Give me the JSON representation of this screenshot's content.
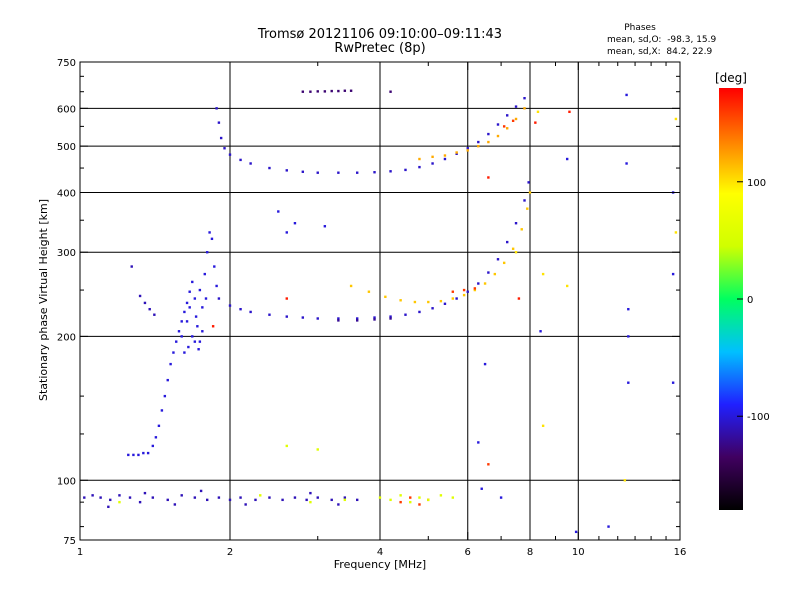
{
  "title": {
    "line1": "Tromsø 20121106 09:10:00–09:11:43",
    "line2": "RwPretec (8p)"
  },
  "stats": {
    "heading": "Phases",
    "o_mode": "mean, sd,O:  -98.3, 15.9",
    "x_mode": "mean, sd,X:  84.2, 22.9"
  },
  "chart_data": {
    "type": "scatter",
    "title": "Tromsø 20121106 09:10:00–09:11:43",
    "subtitle": "RwPretec (8p)",
    "xlabel": "Frequency [MHz]",
    "ylabel": "Stationary phase Virtual Height [km]",
    "x_scale": "log",
    "y_scale": "log",
    "xlim": [
      1,
      16
    ],
    "ylim": [
      75,
      750
    ],
    "x_ticks": [
      1,
      2,
      4,
      6,
      8,
      10,
      16
    ],
    "x_tick_labels": [
      "1",
      "2",
      "4",
      "6",
      "8",
      "10",
      "16"
    ],
    "x_minor_ticks": [
      3,
      5,
      7,
      9,
      11,
      12,
      13,
      14,
      15
    ],
    "y_ticks": [
      75,
      100,
      200,
      300,
      400,
      500,
      600,
      750
    ],
    "y_tick_labels": [
      "75",
      "100",
      "200",
      "300",
      "400",
      "500",
      "600",
      "750"
    ],
    "y_minor_ticks": [
      80,
      90,
      125,
      150,
      250,
      350,
      450,
      550,
      650,
      700
    ],
    "gridlines_x": [
      2,
      4,
      6,
      8,
      10
    ],
    "gridlines_y": [
      100,
      200,
      300,
      400,
      500,
      600
    ],
    "grid": true,
    "colorbar": {
      "label": "[deg]",
      "range": [
        -180,
        180
      ],
      "ticks": [
        100,
        0,
        -100
      ],
      "stops": [
        "#000000",
        "#400060",
        "#2020ff",
        "#00c0ff",
        "#00ff60",
        "#d0ff00",
        "#ffff00",
        "#ff8000",
        "#ff0000"
      ]
    },
    "series": [
      {
        "phase_deg": -110,
        "points": [
          [
            1.02,
            92
          ],
          [
            1.06,
            93
          ],
          [
            1.1,
            92
          ],
          [
            1.15,
            91
          ],
          [
            1.2,
            93
          ],
          [
            1.26,
            92
          ],
          [
            1.32,
            90
          ],
          [
            1.4,
            92
          ],
          [
            1.5,
            91
          ],
          [
            1.6,
            93
          ],
          [
            1.7,
            92
          ],
          [
            1.8,
            91
          ],
          [
            1.9,
            92
          ],
          [
            2.0,
            91
          ],
          [
            2.1,
            92
          ],
          [
            2.25,
            91
          ],
          [
            2.4,
            92
          ],
          [
            2.55,
            91
          ],
          [
            2.7,
            92
          ],
          [
            2.85,
            91
          ],
          [
            3.0,
            92
          ],
          [
            3.2,
            91
          ],
          [
            3.4,
            92
          ],
          [
            3.6,
            91
          ],
          [
            1.14,
            88
          ],
          [
            1.35,
            94
          ],
          [
            1.55,
            89
          ],
          [
            1.75,
            95
          ],
          [
            2.15,
            89
          ],
          [
            2.9,
            94
          ],
          [
            3.3,
            89
          ]
        ]
      },
      {
        "phase_deg": -100,
        "points": [
          [
            1.25,
            113
          ],
          [
            1.28,
            113
          ],
          [
            1.31,
            113
          ],
          [
            1.34,
            114
          ],
          [
            1.37,
            114
          ],
          [
            1.4,
            118
          ],
          [
            1.42,
            123
          ],
          [
            1.44,
            130
          ],
          [
            1.46,
            140
          ],
          [
            1.48,
            150
          ],
          [
            1.5,
            162
          ],
          [
            1.52,
            175
          ],
          [
            1.54,
            185
          ],
          [
            1.56,
            195
          ],
          [
            1.58,
            205
          ],
          [
            1.6,
            215
          ],
          [
            1.62,
            225
          ],
          [
            1.64,
            235
          ],
          [
            1.66,
            248
          ],
          [
            1.68,
            260
          ],
          [
            1.7,
            240
          ],
          [
            1.72,
            210
          ],
          [
            1.74,
            195
          ],
          [
            1.76,
            230
          ],
          [
            1.78,
            270
          ],
          [
            1.8,
            300
          ],
          [
            1.82,
            330
          ],
          [
            1.84,
            320
          ],
          [
            1.86,
            280
          ],
          [
            1.88,
            255
          ]
        ]
      },
      {
        "phase_deg": -100,
        "points": [
          [
            1.62,
            185
          ],
          [
            1.65,
            190
          ],
          [
            1.68,
            200
          ],
          [
            1.7,
            195
          ],
          [
            1.73,
            188
          ],
          [
            1.76,
            205
          ],
          [
            1.6,
            200
          ],
          [
            1.64,
            215
          ],
          [
            1.71,
            220
          ],
          [
            1.79,
            240
          ],
          [
            1.66,
            230
          ],
          [
            1.74,
            250
          ]
        ]
      },
      {
        "phase_deg": -110,
        "points": [
          [
            1.27,
            280
          ],
          [
            1.32,
            243
          ],
          [
            1.35,
            235
          ],
          [
            1.38,
            228
          ],
          [
            1.41,
            222
          ]
        ]
      },
      {
        "phase_deg": -105,
        "points": [
          [
            1.9,
            240
          ],
          [
            2.0,
            232
          ],
          [
            2.1,
            228
          ],
          [
            2.2,
            225
          ],
          [
            2.4,
            222
          ],
          [
            2.6,
            220
          ],
          [
            2.8,
            219
          ],
          [
            3.0,
            218
          ],
          [
            3.3,
            218
          ],
          [
            3.6,
            218
          ],
          [
            3.9,
            219
          ],
          [
            4.2,
            220
          ],
          [
            4.5,
            222
          ],
          [
            4.8,
            225
          ],
          [
            5.1,
            229
          ],
          [
            5.4,
            234
          ],
          [
            5.7,
            240
          ],
          [
            6.0,
            248
          ],
          [
            6.3,
            258
          ],
          [
            6.6,
            272
          ],
          [
            6.9,
            290
          ],
          [
            7.2,
            315
          ],
          [
            7.5,
            345
          ],
          [
            7.8,
            385
          ],
          [
            7.95,
            420
          ]
        ]
      },
      {
        "phase_deg": -120,
        "points": [
          [
            3.3,
            216
          ],
          [
            3.6,
            216
          ],
          [
            3.9,
            217
          ],
          [
            4.2,
            218
          ]
        ]
      },
      {
        "phase_deg": -105,
        "points": [
          [
            1.88,
            600
          ],
          [
            1.9,
            560
          ],
          [
            1.92,
            520
          ],
          [
            1.95,
            495
          ],
          [
            2.0,
            480
          ],
          [
            2.1,
            468
          ],
          [
            2.2,
            460
          ],
          [
            2.4,
            450
          ],
          [
            2.6,
            445
          ],
          [
            2.8,
            442
          ],
          [
            3.0,
            440
          ],
          [
            3.3,
            440
          ],
          [
            3.6,
            440
          ],
          [
            3.9,
            441
          ],
          [
            4.2,
            443
          ],
          [
            4.5,
            446
          ],
          [
            4.8,
            452
          ],
          [
            5.1,
            460
          ],
          [
            5.4,
            470
          ],
          [
            5.7,
            482
          ],
          [
            6.0,
            495
          ],
          [
            6.3,
            510
          ],
          [
            6.6,
            530
          ],
          [
            6.9,
            555
          ],
          [
            7.2,
            580
          ],
          [
            7.5,
            605
          ],
          [
            7.8,
            630
          ]
        ]
      },
      {
        "phase_deg": -130,
        "points": [
          [
            2.8,
            650
          ],
          [
            2.9,
            650
          ],
          [
            3.0,
            651
          ],
          [
            3.1,
            651
          ],
          [
            3.2,
            652
          ],
          [
            3.3,
            652
          ],
          [
            3.4,
            653
          ],
          [
            3.5,
            653
          ],
          [
            4.2,
            650
          ]
        ]
      },
      {
        "phase_deg": 110,
        "points": [
          [
            3.5,
            255
          ],
          [
            3.8,
            248
          ],
          [
            4.1,
            242
          ],
          [
            4.4,
            238
          ],
          [
            4.7,
            236
          ],
          [
            5.0,
            236
          ],
          [
            5.3,
            237
          ],
          [
            5.6,
            240
          ],
          [
            5.9,
            244
          ],
          [
            6.2,
            250
          ],
          [
            6.5,
            258
          ],
          [
            6.8,
            270
          ],
          [
            7.1,
            285
          ],
          [
            7.4,
            305
          ],
          [
            7.7,
            335
          ],
          [
            7.9,
            370
          ],
          [
            8.0,
            400
          ]
        ]
      },
      {
        "phase_deg": 120,
        "points": [
          [
            4.8,
            470
          ],
          [
            5.1,
            475
          ],
          [
            5.4,
            478
          ],
          [
            5.7,
            485
          ],
          [
            6.0,
            490
          ],
          [
            6.3,
            500
          ],
          [
            6.6,
            510
          ],
          [
            6.9,
            525
          ],
          [
            7.2,
            545
          ],
          [
            7.5,
            570
          ],
          [
            7.8,
            600
          ]
        ]
      },
      {
        "phase_deg": 160,
        "points": [
          [
            5.6,
            248
          ],
          [
            5.9,
            250
          ],
          [
            6.2,
            252
          ],
          [
            4.4,
            90
          ],
          [
            4.6,
            92
          ],
          [
            4.8,
            89
          ],
          [
            5.0,
            91
          ],
          [
            7.1,
            550
          ],
          [
            7.4,
            565
          ],
          [
            6.6,
            108
          ]
        ]
      },
      {
        "phase_deg": 60,
        "points": [
          [
            4.0,
            92
          ],
          [
            4.2,
            91
          ],
          [
            4.4,
            93
          ],
          [
            4.6,
            90
          ],
          [
            4.8,
            92
          ],
          [
            5.0,
            91
          ],
          [
            5.3,
            93
          ],
          [
            5.6,
            92
          ],
          [
            1.2,
            90
          ],
          [
            2.3,
            93
          ],
          [
            2.9,
            90
          ],
          [
            3.4,
            91
          ],
          [
            2.6,
            118
          ],
          [
            3.0,
            116
          ]
        ]
      },
      {
        "phase_deg": -100,
        "points": [
          [
            2.5,
            365
          ],
          [
            2.7,
            345
          ],
          [
            3.1,
            340
          ],
          [
            2.6,
            330
          ],
          [
            6.5,
            175
          ],
          [
            6.3,
            120
          ],
          [
            8.4,
            205
          ],
          [
            9.5,
            470
          ],
          [
            12.5,
            640
          ],
          [
            12.5,
            460
          ],
          [
            12.6,
            228
          ],
          [
            12.6,
            200
          ],
          [
            12.6,
            160
          ],
          [
            15.5,
            400
          ],
          [
            15.5,
            270
          ],
          [
            15.5,
            160
          ],
          [
            11.5,
            80
          ],
          [
            9.9,
            78
          ],
          [
            7.0,
            92
          ],
          [
            6.4,
            96
          ]
        ]
      },
      {
        "phase_deg": 100,
        "points": [
          [
            7.5,
            300
          ],
          [
            8.5,
            270
          ],
          [
            8.5,
            130
          ],
          [
            9.5,
            255
          ],
          [
            15.7,
            330
          ],
          [
            15.7,
            570
          ],
          [
            12.4,
            100
          ],
          [
            8.3,
            590
          ]
        ]
      },
      {
        "phase_deg": 170,
        "points": [
          [
            1.85,
            210
          ],
          [
            2.6,
            240
          ],
          [
            6.6,
            430
          ],
          [
            7.6,
            240
          ],
          [
            8.2,
            560
          ],
          [
            9.6,
            590
          ]
        ]
      }
    ]
  }
}
